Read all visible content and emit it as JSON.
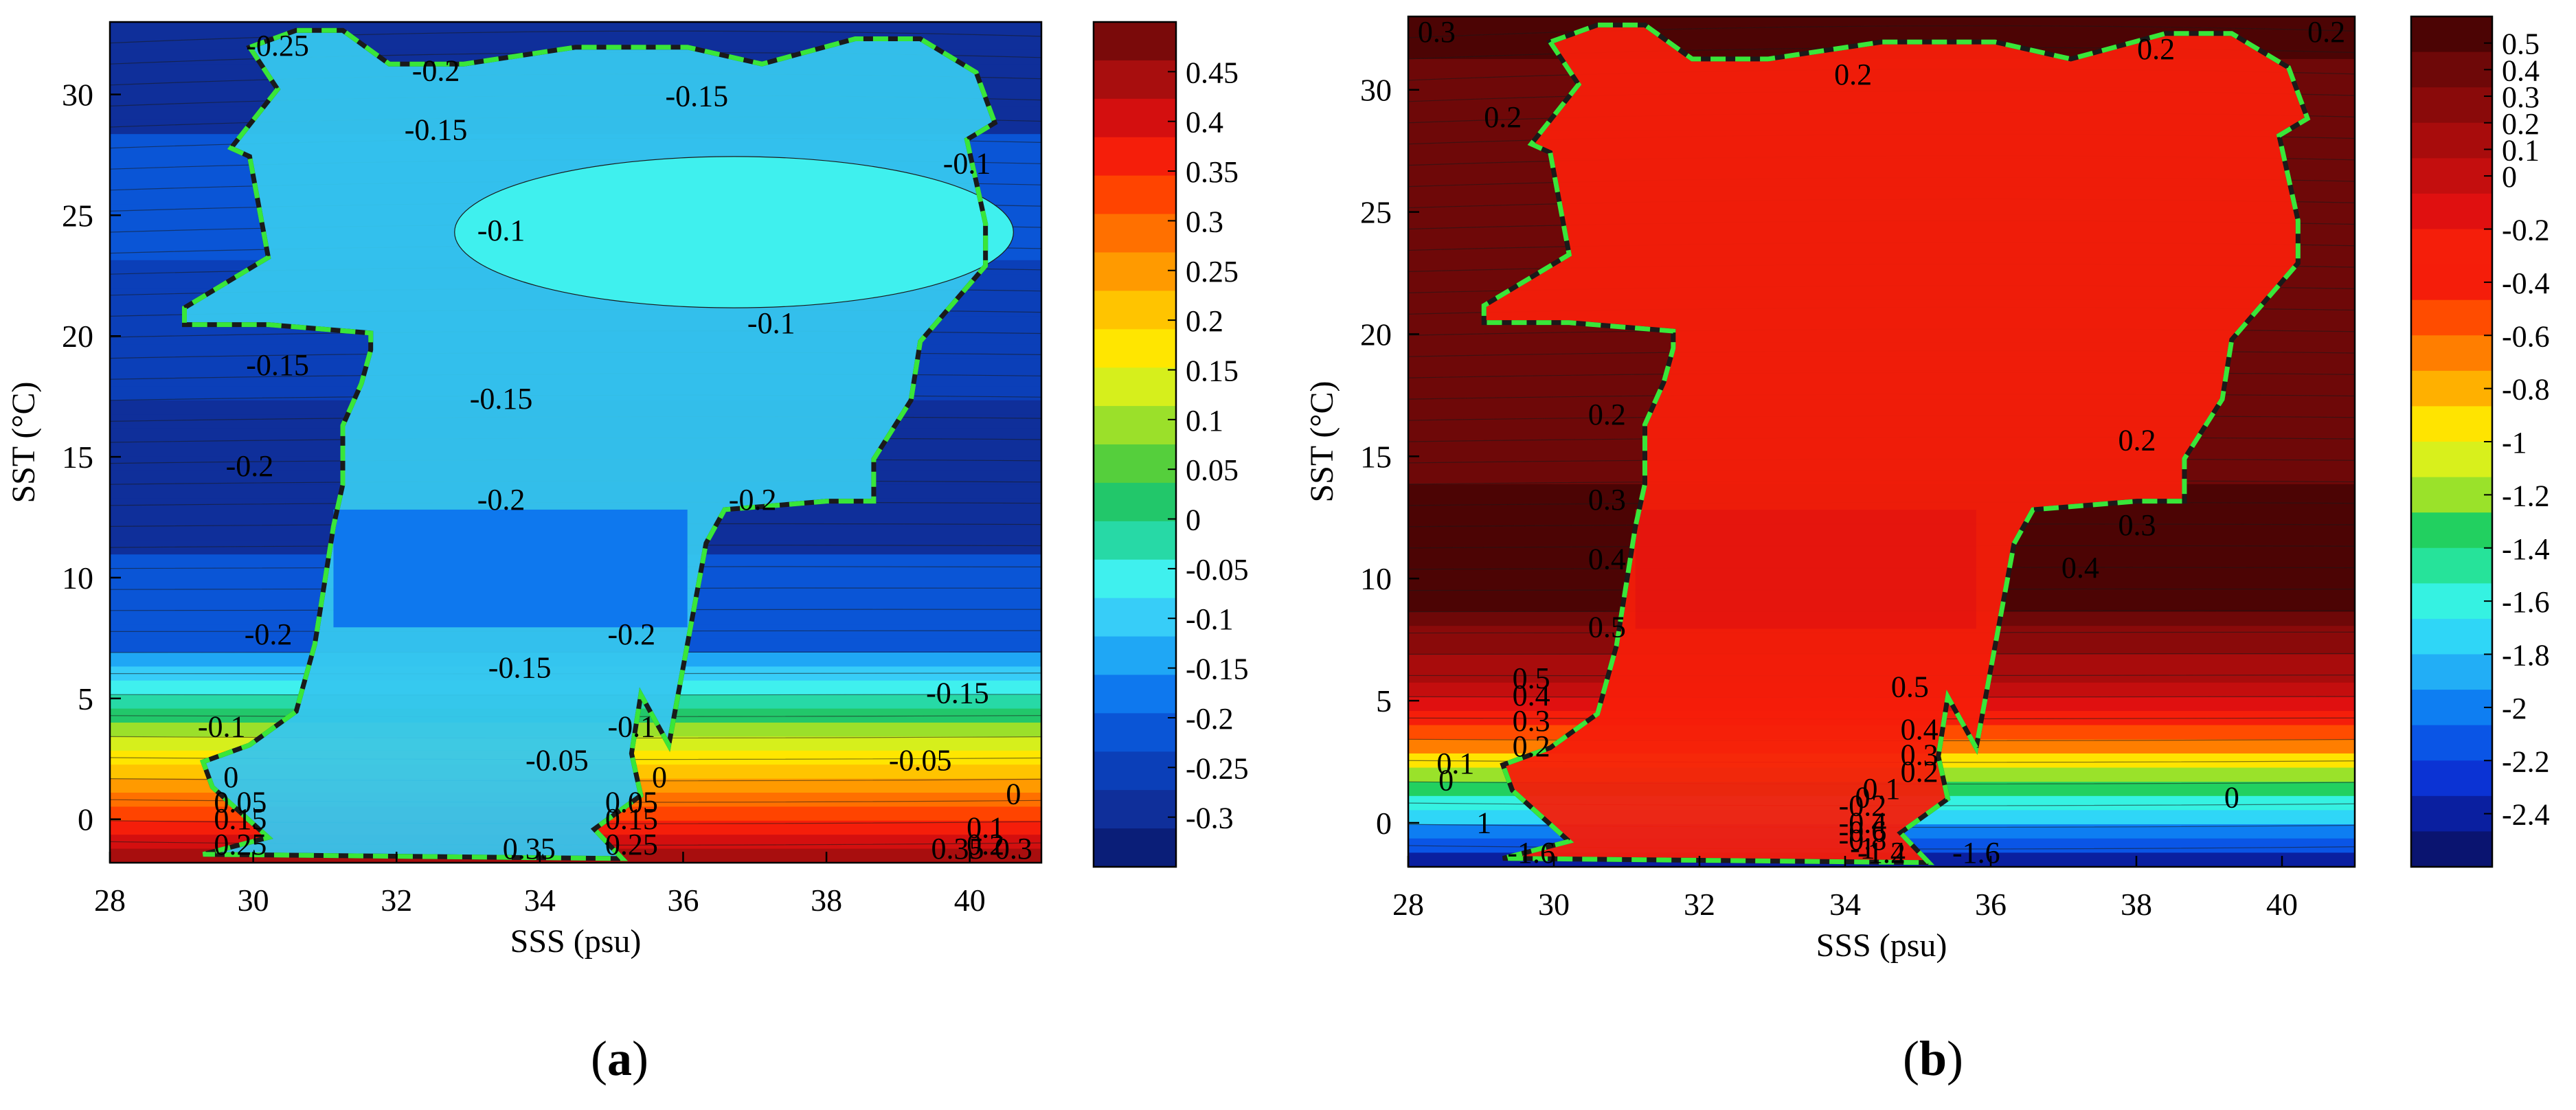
{
  "chart_data": [
    {
      "type": "heatmap",
      "caption_letter": "a",
      "xlabel": "SSS (psu)",
      "ylabel": "SST (°C)",
      "xlim": [
        28,
        41
      ],
      "ylim": [
        -1.8,
        33
      ],
      "xticks": [
        28,
        30,
        32,
        34,
        36,
        38,
        40
      ],
      "yticks": [
        0,
        5,
        10,
        15,
        20,
        25,
        30
      ],
      "colorbar": {
        "range": [
          -0.35,
          0.5
        ],
        "ticks": [
          "0.45",
          "0.4",
          "0.35",
          "0.3",
          "0.25",
          "0.2",
          "0.15",
          "0.1",
          "0.05",
          "0",
          "-0.05",
          "-0.1",
          "-0.15",
          "-0.2",
          "-0.25",
          "-0.3"
        ],
        "colors": [
          "#0a1e78",
          "#0f2f9a",
          "#0b3fb8",
          "#0a55d6",
          "#0e78ee",
          "#1fa7f5",
          "#37cdf8",
          "#3ff0ee",
          "#27d9a6",
          "#22c76a",
          "#55cf3c",
          "#9be02a",
          "#d6ef1c",
          "#ffe600",
          "#ffc400",
          "#ff9a00",
          "#ff7000",
          "#ff4400",
          "#f51e0a",
          "#d40f0f",
          "#a80e0e",
          "#7a0a0a"
        ]
      },
      "contour_labels": [
        "-0.25",
        "-0.2",
        "-0.15",
        "-0.15",
        "-0.1",
        "-0.1",
        "-0.1",
        "-0.15",
        "-0.15",
        "-0.2",
        "-0.2",
        "-0.2",
        "-0.2",
        "-0.2",
        "-0.15",
        "-0.15",
        "-0.1",
        "-0.1",
        "-0.05",
        "-0.05",
        "0",
        "0",
        "0",
        "0.05",
        "0.05",
        "0.1",
        "0.15",
        "0.15",
        "0.2",
        "0.25",
        "0.25",
        "0.3",
        "0.35",
        "0.35"
      ],
      "region_color": "#36c6ee"
    },
    {
      "type": "heatmap",
      "caption_letter": "b",
      "xlabel": "SSS (psu)",
      "ylabel": "SST (°C)",
      "xlim": [
        28,
        41
      ],
      "ylim": [
        -1.8,
        33
      ],
      "xticks": [
        28,
        30,
        32,
        34,
        36,
        38,
        40
      ],
      "yticks": [
        0,
        5,
        10,
        15,
        20,
        25,
        30
      ],
      "colorbar": {
        "range": [
          -2.6,
          0.6
        ],
        "ticks": [
          "0.5",
          "0.4",
          "0.3",
          "0.2",
          "0.1",
          "0",
          "-0.2",
          "-0.4",
          "-0.6",
          "-0.8",
          "-1",
          "-1.2",
          "-1.4",
          "-1.6",
          "-1.8",
          "-2",
          "-2.2",
          "-2.4"
        ],
        "colors": [
          "#0a1470",
          "#0a1fa0",
          "#0b33d4",
          "#0a55e6",
          "#0e7ef2",
          "#22aef6",
          "#2fd6f7",
          "#35f2e2",
          "#26e39a",
          "#22d060",
          "#9ae22a",
          "#d8f01c",
          "#ffe400",
          "#ffb000",
          "#ff7e00",
          "#ff4c00",
          "#f51d0a",
          "#f51e0a",
          "#e01010",
          "#c40e0e",
          "#a80c0c",
          "#8a0a0a",
          "#6e0808",
          "#4c0404"
        ]
      },
      "contour_labels": [
        "0.3",
        "0.2",
        "0.2",
        "0.2",
        "0.2",
        "0.2",
        "0.2",
        "0.3",
        "0.3",
        "0.4",
        "0.4",
        "0.5",
        "0.5",
        "0.5",
        "0.4",
        "0.4",
        "0.3",
        "0.3",
        "0.2",
        "0.2",
        "0.1",
        "0.1",
        "0",
        "0",
        "0",
        "1",
        "-0.2",
        "-0.4",
        "-0.6",
        "-0.8",
        "-1",
        "-1.2",
        "-1.4",
        "-1.6",
        "-1.6"
      ],
      "region_color": "#f51e0a"
    }
  ]
}
